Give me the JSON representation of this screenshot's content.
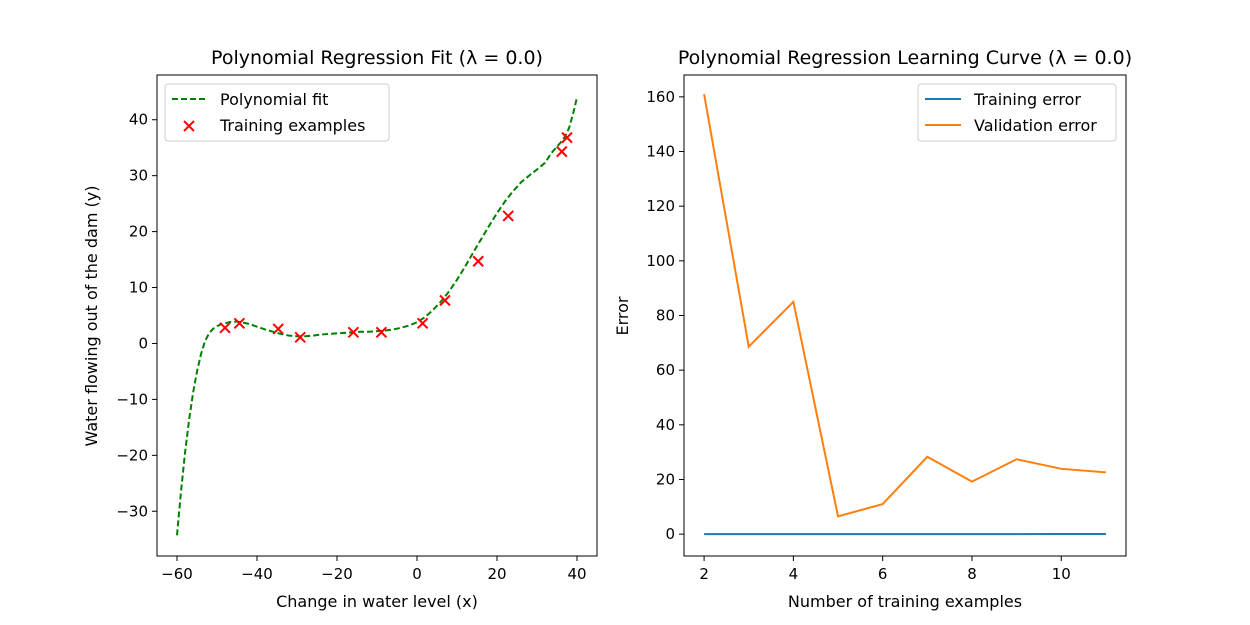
{
  "chart_data": [
    {
      "type": "line",
      "title": "Polynomial Regression Fit (λ = 0.0)",
      "xlabel": "Change in water level (x)",
      "ylabel": "Water flowing out of the dam (y)",
      "xlim": [
        -65,
        45
      ],
      "ylim": [
        -38,
        48
      ],
      "xticks": [
        -60,
        -40,
        -20,
        0,
        20,
        40
      ],
      "yticks": [
        -30,
        -20,
        -10,
        0,
        10,
        20,
        30,
        40
      ],
      "xtick_labels": [
        "−60",
        "−40",
        "−20",
        "0",
        "20",
        "40"
      ],
      "ytick_labels": [
        "−30",
        "−20",
        "−10",
        "0",
        "10",
        "20",
        "30",
        "40"
      ],
      "legend_position": "upper-left",
      "colors": {
        "fit": "#008000",
        "points": "#ff0000"
      },
      "series": [
        {
          "name": "Polynomial fit",
          "style": "dashed",
          "x": [
            -60,
            -59,
            -58,
            -57,
            -56,
            -55,
            -54,
            -53,
            -52,
            -51,
            -50,
            -49,
            -48,
            -47,
            -46,
            -45,
            -44,
            -42,
            -40,
            -38,
            -36,
            -34,
            -32,
            -30,
            -28,
            -26,
            -24,
            -22,
            -20,
            -18,
            -16,
            -14,
            -12,
            -10,
            -8,
            -6,
            -4,
            -2,
            0,
            2,
            4,
            6,
            8,
            10,
            12,
            14,
            16,
            18,
            20,
            22,
            24,
            26,
            28,
            30,
            32,
            33,
            34,
            35,
            36,
            37,
            38,
            39,
            40
          ],
          "y": [
            -34.3,
            -26.5,
            -19.6,
            -13.8,
            -8.9,
            -5.0,
            -1.9,
            0.4,
            1.8,
            2.6,
            3.1,
            3.4,
            3.6,
            3.8,
            3.9,
            3.9,
            3.8,
            3.5,
            3.0,
            2.5,
            2.1,
            1.7,
            1.4,
            1.3,
            1.3,
            1.4,
            1.6,
            1.7,
            1.8,
            1.9,
            2.0,
            2.1,
            2.1,
            2.2,
            2.3,
            2.5,
            2.8,
            3.2,
            3.8,
            4.7,
            6.0,
            7.5,
            9.3,
            11.4,
            13.7,
            16.2,
            18.6,
            21.0,
            23.3,
            25.4,
            27.2,
            28.8,
            30.0,
            31.1,
            32.3,
            33.4,
            34.4,
            35.2,
            36.0,
            37.0,
            38.5,
            41.0,
            44.0
          ]
        },
        {
          "name": "Training examples",
          "style": "x-markers",
          "x": [
            -48,
            -44.4,
            -34.7,
            -29.2,
            -15.9,
            -8.9,
            1.4,
            7.0,
            15.3,
            22.8,
            36.2,
            37.5
          ],
          "y": [
            2.8,
            3.6,
            2.6,
            1.1,
            2.0,
            2.0,
            3.6,
            7.7,
            14.7,
            22.8,
            34.3,
            36.8
          ]
        }
      ]
    },
    {
      "type": "line",
      "title": "Polynomial Regression Learning Curve (λ = 0.0)",
      "xlabel": "Number of training examples",
      "ylabel": "Error",
      "xlim": [
        1.55,
        11.45
      ],
      "ylim": [
        -8,
        168
      ],
      "xticks": [
        2,
        4,
        6,
        8,
        10
      ],
      "yticks": [
        0,
        20,
        40,
        60,
        80,
        100,
        120,
        140,
        160
      ],
      "xtick_labels": [
        "2",
        "4",
        "6",
        "8",
        "10"
      ],
      "ytick_labels": [
        "0",
        "20",
        "40",
        "60",
        "80",
        "100",
        "120",
        "140",
        "160"
      ],
      "legend_position": "upper-right",
      "colors": {
        "train": "#1f77b4",
        "val": "#ff7f0e"
      },
      "series": [
        {
          "name": "Training error",
          "x": [
            2,
            3,
            4,
            5,
            6,
            7,
            8,
            9,
            10,
            11
          ],
          "y": [
            0.0,
            0.0,
            0.0,
            0.0,
            0.0,
            0.0,
            0.0,
            0.02,
            0.05,
            0.06
          ]
        },
        {
          "name": "Validation error",
          "x": [
            2,
            3,
            4,
            5,
            6,
            7,
            8,
            9,
            10,
            11
          ],
          "y": [
            161.0,
            68.6,
            85.0,
            6.5,
            11.0,
            28.3,
            19.2,
            27.4,
            23.9,
            22.6
          ]
        }
      ]
    }
  ]
}
